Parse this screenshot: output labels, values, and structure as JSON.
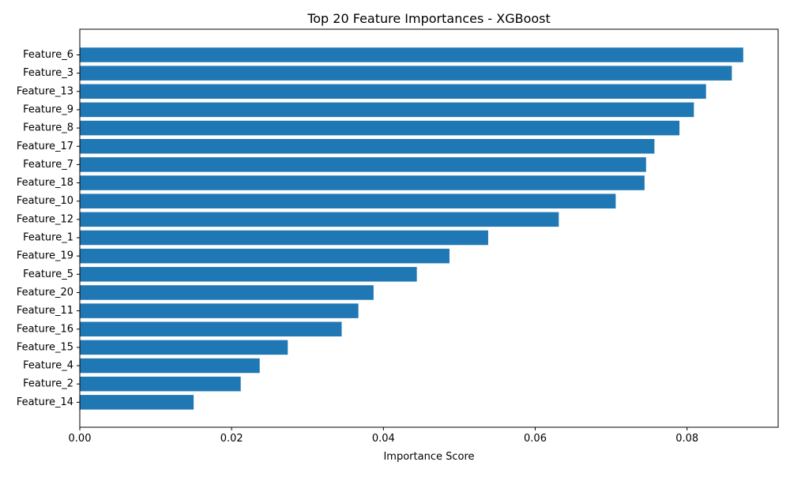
{
  "chart_data": {
    "type": "bar",
    "orientation": "horizontal",
    "title": "Top 20 Feature Importances - XGBoost",
    "xlabel": "Importance Score",
    "ylabel": "",
    "xlim": [
      0,
      0.092
    ],
    "xticks": [
      0.0,
      0.02,
      0.04,
      0.06,
      0.08
    ],
    "xtick_labels": [
      "0.00",
      "0.02",
      "0.04",
      "0.06",
      "0.08"
    ],
    "grid": false,
    "bar_color": "#1f77b4",
    "categories": [
      "Feature_6",
      "Feature_3",
      "Feature_13",
      "Feature_9",
      "Feature_8",
      "Feature_17",
      "Feature_7",
      "Feature_18",
      "Feature_10",
      "Feature_12",
      "Feature_1",
      "Feature_19",
      "Feature_5",
      "Feature_20",
      "Feature_11",
      "Feature_16",
      "Feature_15",
      "Feature_4",
      "Feature_2",
      "Feature_14"
    ],
    "values": [
      0.0874,
      0.0859,
      0.0825,
      0.0809,
      0.079,
      0.0757,
      0.0746,
      0.0744,
      0.0706,
      0.0631,
      0.0538,
      0.0487,
      0.0444,
      0.0387,
      0.0367,
      0.0345,
      0.0274,
      0.0237,
      0.0212,
      0.015
    ]
  }
}
